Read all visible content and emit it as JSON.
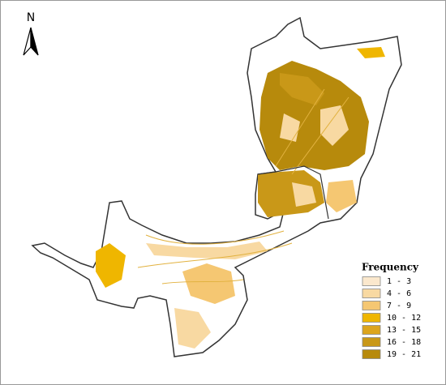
{
  "north_arrow": {
    "label": "N"
  },
  "legend": {
    "title": "Frequency",
    "items": [
      {
        "label": "1 - 3",
        "color": "#fbe8cd"
      },
      {
        "label": "4 - 6",
        "color": "#f8d9a2"
      },
      {
        "label": "7 - 9",
        "color": "#f5c772"
      },
      {
        "label": "10 - 12",
        "color": "#efb600"
      },
      {
        "label": "13 - 15",
        "color": "#dca51e"
      },
      {
        "label": "16 - 18",
        "color": "#c99818"
      },
      {
        "label": "19 - 21",
        "color": "#b78a0c"
      }
    ]
  }
}
